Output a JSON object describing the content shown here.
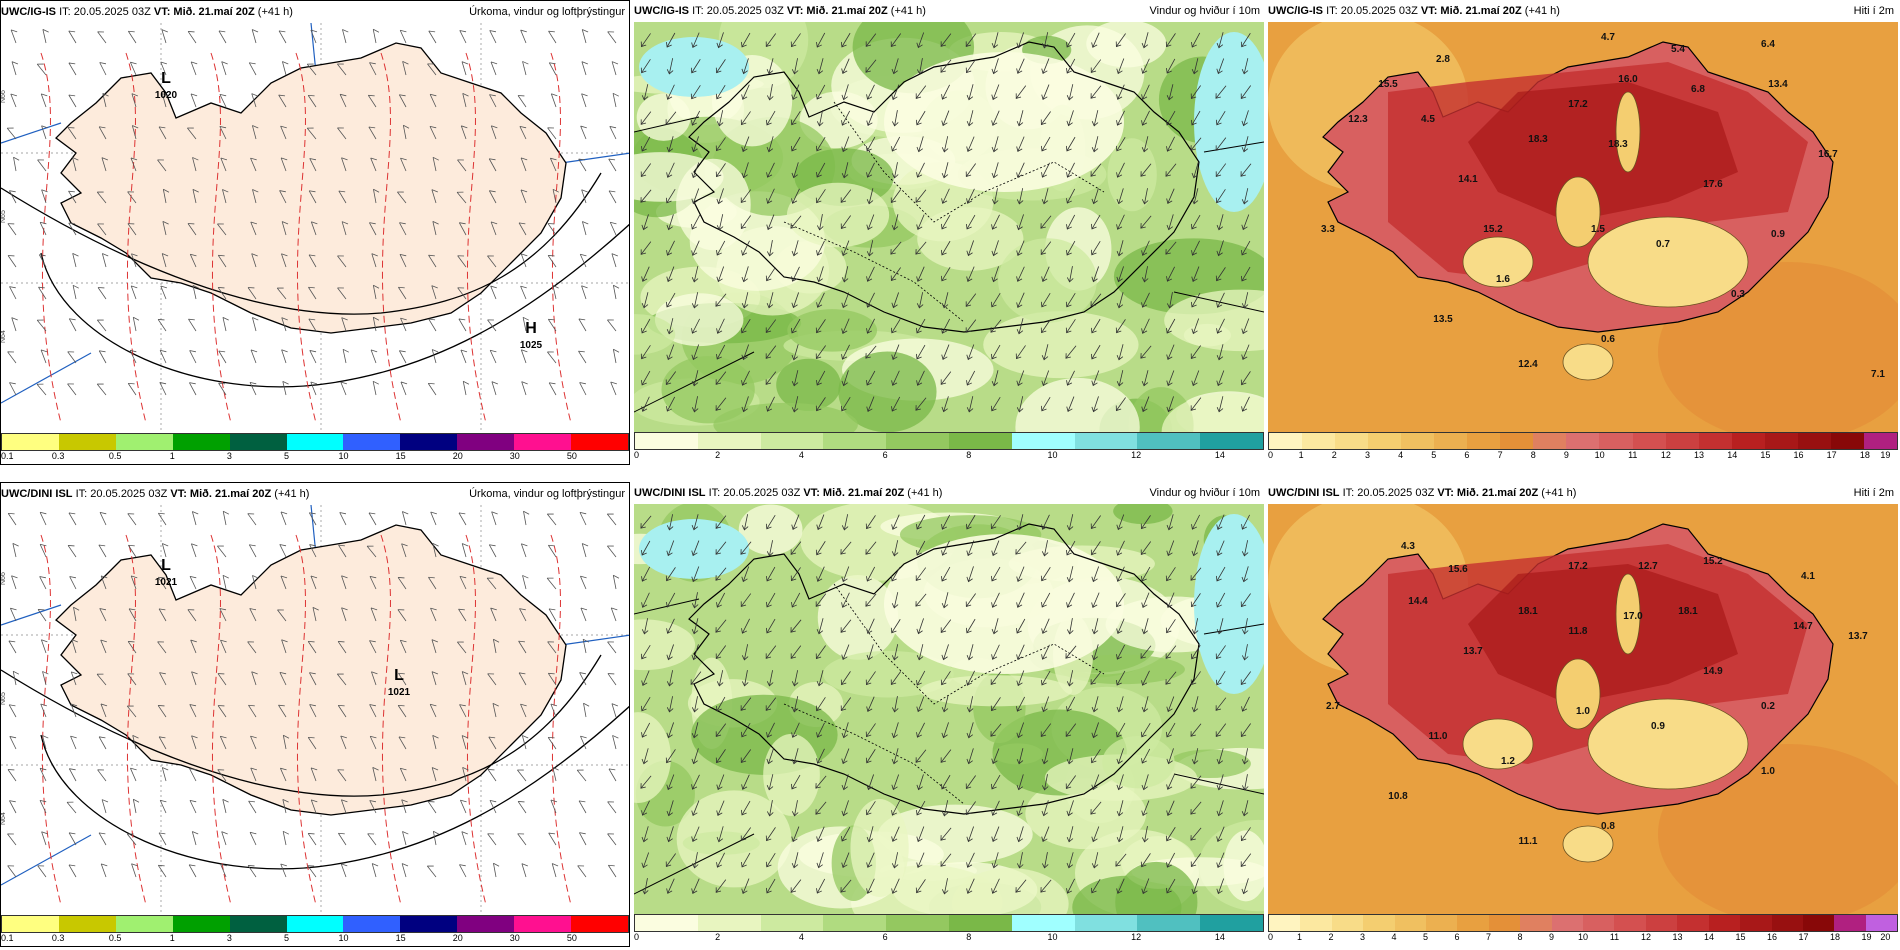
{
  "panels": [
    {
      "id": "p1",
      "row": 0,
      "col": 0,
      "model": "UWC/IG-IS",
      "it": "IT: 20.05.2025 03Z",
      "vt": "VT: Mið. 21.maí 20Z",
      "lead": "(+41 h)",
      "title": "Úrkoma, vindur og loftþrýstingur",
      "legend_colors": [
        "#ffff80",
        "#c8c800",
        "#a0f070",
        "#00a000",
        "#006040",
        "#00ffff",
        "#3060ff",
        "#000080",
        "#800080",
        "#ff1090",
        "#ff0000"
      ],
      "legend_ticks": [
        "0.1",
        "0.3",
        "0.5",
        "1",
        "3",
        "5",
        "10",
        "15",
        "20",
        "30",
        "50"
      ],
      "labels": [
        {
          "text": "L",
          "kind": "sym"
        },
        {
          "text": "1020",
          "kind": "val"
        },
        {
          "text": "H",
          "kind": "sym"
        },
        {
          "text": "1025",
          "kind": "val"
        }
      ],
      "lon_labels": [
        "N66",
        "N65",
        "N64"
      ]
    },
    {
      "id": "p2",
      "row": 0,
      "col": 1,
      "model": "UWC/IG-IS",
      "it": "IT: 20.05.2025 03Z",
      "vt": "VT: Mið. 21.maí 20Z",
      "lead": "(+41 h)",
      "title": "Vindur og hviður í 10m",
      "legend_colors": [
        "#fbfde0",
        "#e8f5c0",
        "#cdeaa0",
        "#b0db80",
        "#94c860",
        "#7ab848",
        "#a0ffff",
        "#80e0e0",
        "#50c0c0",
        "#20a0a0"
      ],
      "legend_ticks": [
        "0",
        "2",
        "4",
        "6",
        "8",
        "10",
        "12",
        "14"
      ]
    },
    {
      "id": "p3",
      "row": 0,
      "col": 2,
      "model": "UWC/IG-IS",
      "it": "IT: 20.05.2025 03Z",
      "vt": "VT: Mið. 21.maí 20Z",
      "lead": "(+41 h)",
      "title": "Hiti í 2m",
      "legend_colors": [
        "#fff4c0",
        "#fce8a0",
        "#f8dc88",
        "#f4ce70",
        "#f0c060",
        "#ecb050",
        "#e8a040",
        "#e49038",
        "#e08060",
        "#dc7070",
        "#d86060",
        "#d45050",
        "#cc4040",
        "#c43030",
        "#b82020",
        "#a81818",
        "#981010",
        "#880808",
        "#b02080"
      ],
      "legend_ticks": [
        "0",
        "1",
        "2",
        "3",
        "4",
        "5",
        "6",
        "7",
        "8",
        "9",
        "10",
        "11",
        "12",
        "13",
        "14",
        "15",
        "16",
        "17",
        "18",
        "19"
      ],
      "values": [
        "4.7",
        "5.4",
        "6.4",
        "2.8",
        "15.5",
        "16.0",
        "6.8",
        "13.4",
        "12.3",
        "4.5",
        "17.2",
        "18.3",
        "18.3",
        "16.7",
        "14.1",
        "17.6",
        "3.3",
        "15.2",
        "1.5",
        "0.7",
        "0.9",
        "1.6",
        "0.3",
        "13.5",
        "0.6",
        "12.4",
        "7.1"
      ]
    },
    {
      "id": "p4",
      "row": 1,
      "col": 0,
      "model": "UWC/DINI ISL",
      "it": "IT: 20.05.2025 03Z",
      "vt": "VT: Mið. 21.maí 20Z",
      "lead": "(+41 h)",
      "title": "Úrkoma, vindur og loftþrýstingur",
      "legend_colors": [
        "#ffff80",
        "#c8c800",
        "#a0f070",
        "#00a000",
        "#006040",
        "#00ffff",
        "#3060ff",
        "#000080",
        "#800080",
        "#ff1090",
        "#ff0000"
      ],
      "legend_ticks": [
        "0.1",
        "0.3",
        "0.5",
        "1",
        "3",
        "5",
        "10",
        "15",
        "20",
        "30",
        "50"
      ],
      "labels": [
        {
          "text": "L",
          "kind": "sym"
        },
        {
          "text": "1021",
          "kind": "val"
        },
        {
          "text": "L",
          "kind": "sym"
        },
        {
          "text": "1021",
          "kind": "val"
        }
      ],
      "lon_labels": [
        "N66",
        "N65",
        "N64"
      ]
    },
    {
      "id": "p5",
      "row": 1,
      "col": 1,
      "model": "UWC/DINI ISL",
      "it": "IT: 20.05.2025 03Z",
      "vt": "VT: Mið. 21.maí 20Z",
      "lead": "(+41 h)",
      "title": "Vindur og hviður í 10m",
      "legend_colors": [
        "#fbfde0",
        "#e8f5c0",
        "#cdeaa0",
        "#b0db80",
        "#94c860",
        "#7ab848",
        "#a0ffff",
        "#80e0e0",
        "#50c0c0",
        "#20a0a0"
      ],
      "legend_ticks": [
        "0",
        "2",
        "4",
        "6",
        "8",
        "10",
        "12",
        "14"
      ]
    },
    {
      "id": "p6",
      "row": 1,
      "col": 2,
      "model": "UWC/DINI ISL",
      "it": "IT: 20.05.2025 03Z",
      "vt": "VT: Mið. 21.maí 20Z",
      "lead": "(+41 h)",
      "title": "Hiti í 2m",
      "legend_colors": [
        "#fff4c0",
        "#fce8a0",
        "#f8dc88",
        "#f4ce70",
        "#f0c060",
        "#ecb050",
        "#e8a040",
        "#e49038",
        "#e08060",
        "#dc7070",
        "#d86060",
        "#d45050",
        "#cc4040",
        "#c43030",
        "#b82020",
        "#a81818",
        "#981010",
        "#880808",
        "#b02080",
        "#c060e0"
      ],
      "legend_ticks": [
        "0",
        "1",
        "2",
        "3",
        "4",
        "5",
        "6",
        "7",
        "8",
        "9",
        "10",
        "11",
        "12",
        "13",
        "14",
        "15",
        "16",
        "17",
        "18",
        "19",
        "20"
      ],
      "values": [
        "4.3",
        "15.6",
        "17.2",
        "12.7",
        "15.2",
        "4.1",
        "14.4",
        "18.1",
        "11.8",
        "17.0",
        "18.1",
        "14.7",
        "13.7",
        "13.7",
        "14.9",
        "2.7",
        "1.0",
        "0.9",
        "0.2",
        "11.0",
        "1.2",
        "1.0",
        "10.8",
        "0.8",
        "11.1"
      ]
    }
  ]
}
